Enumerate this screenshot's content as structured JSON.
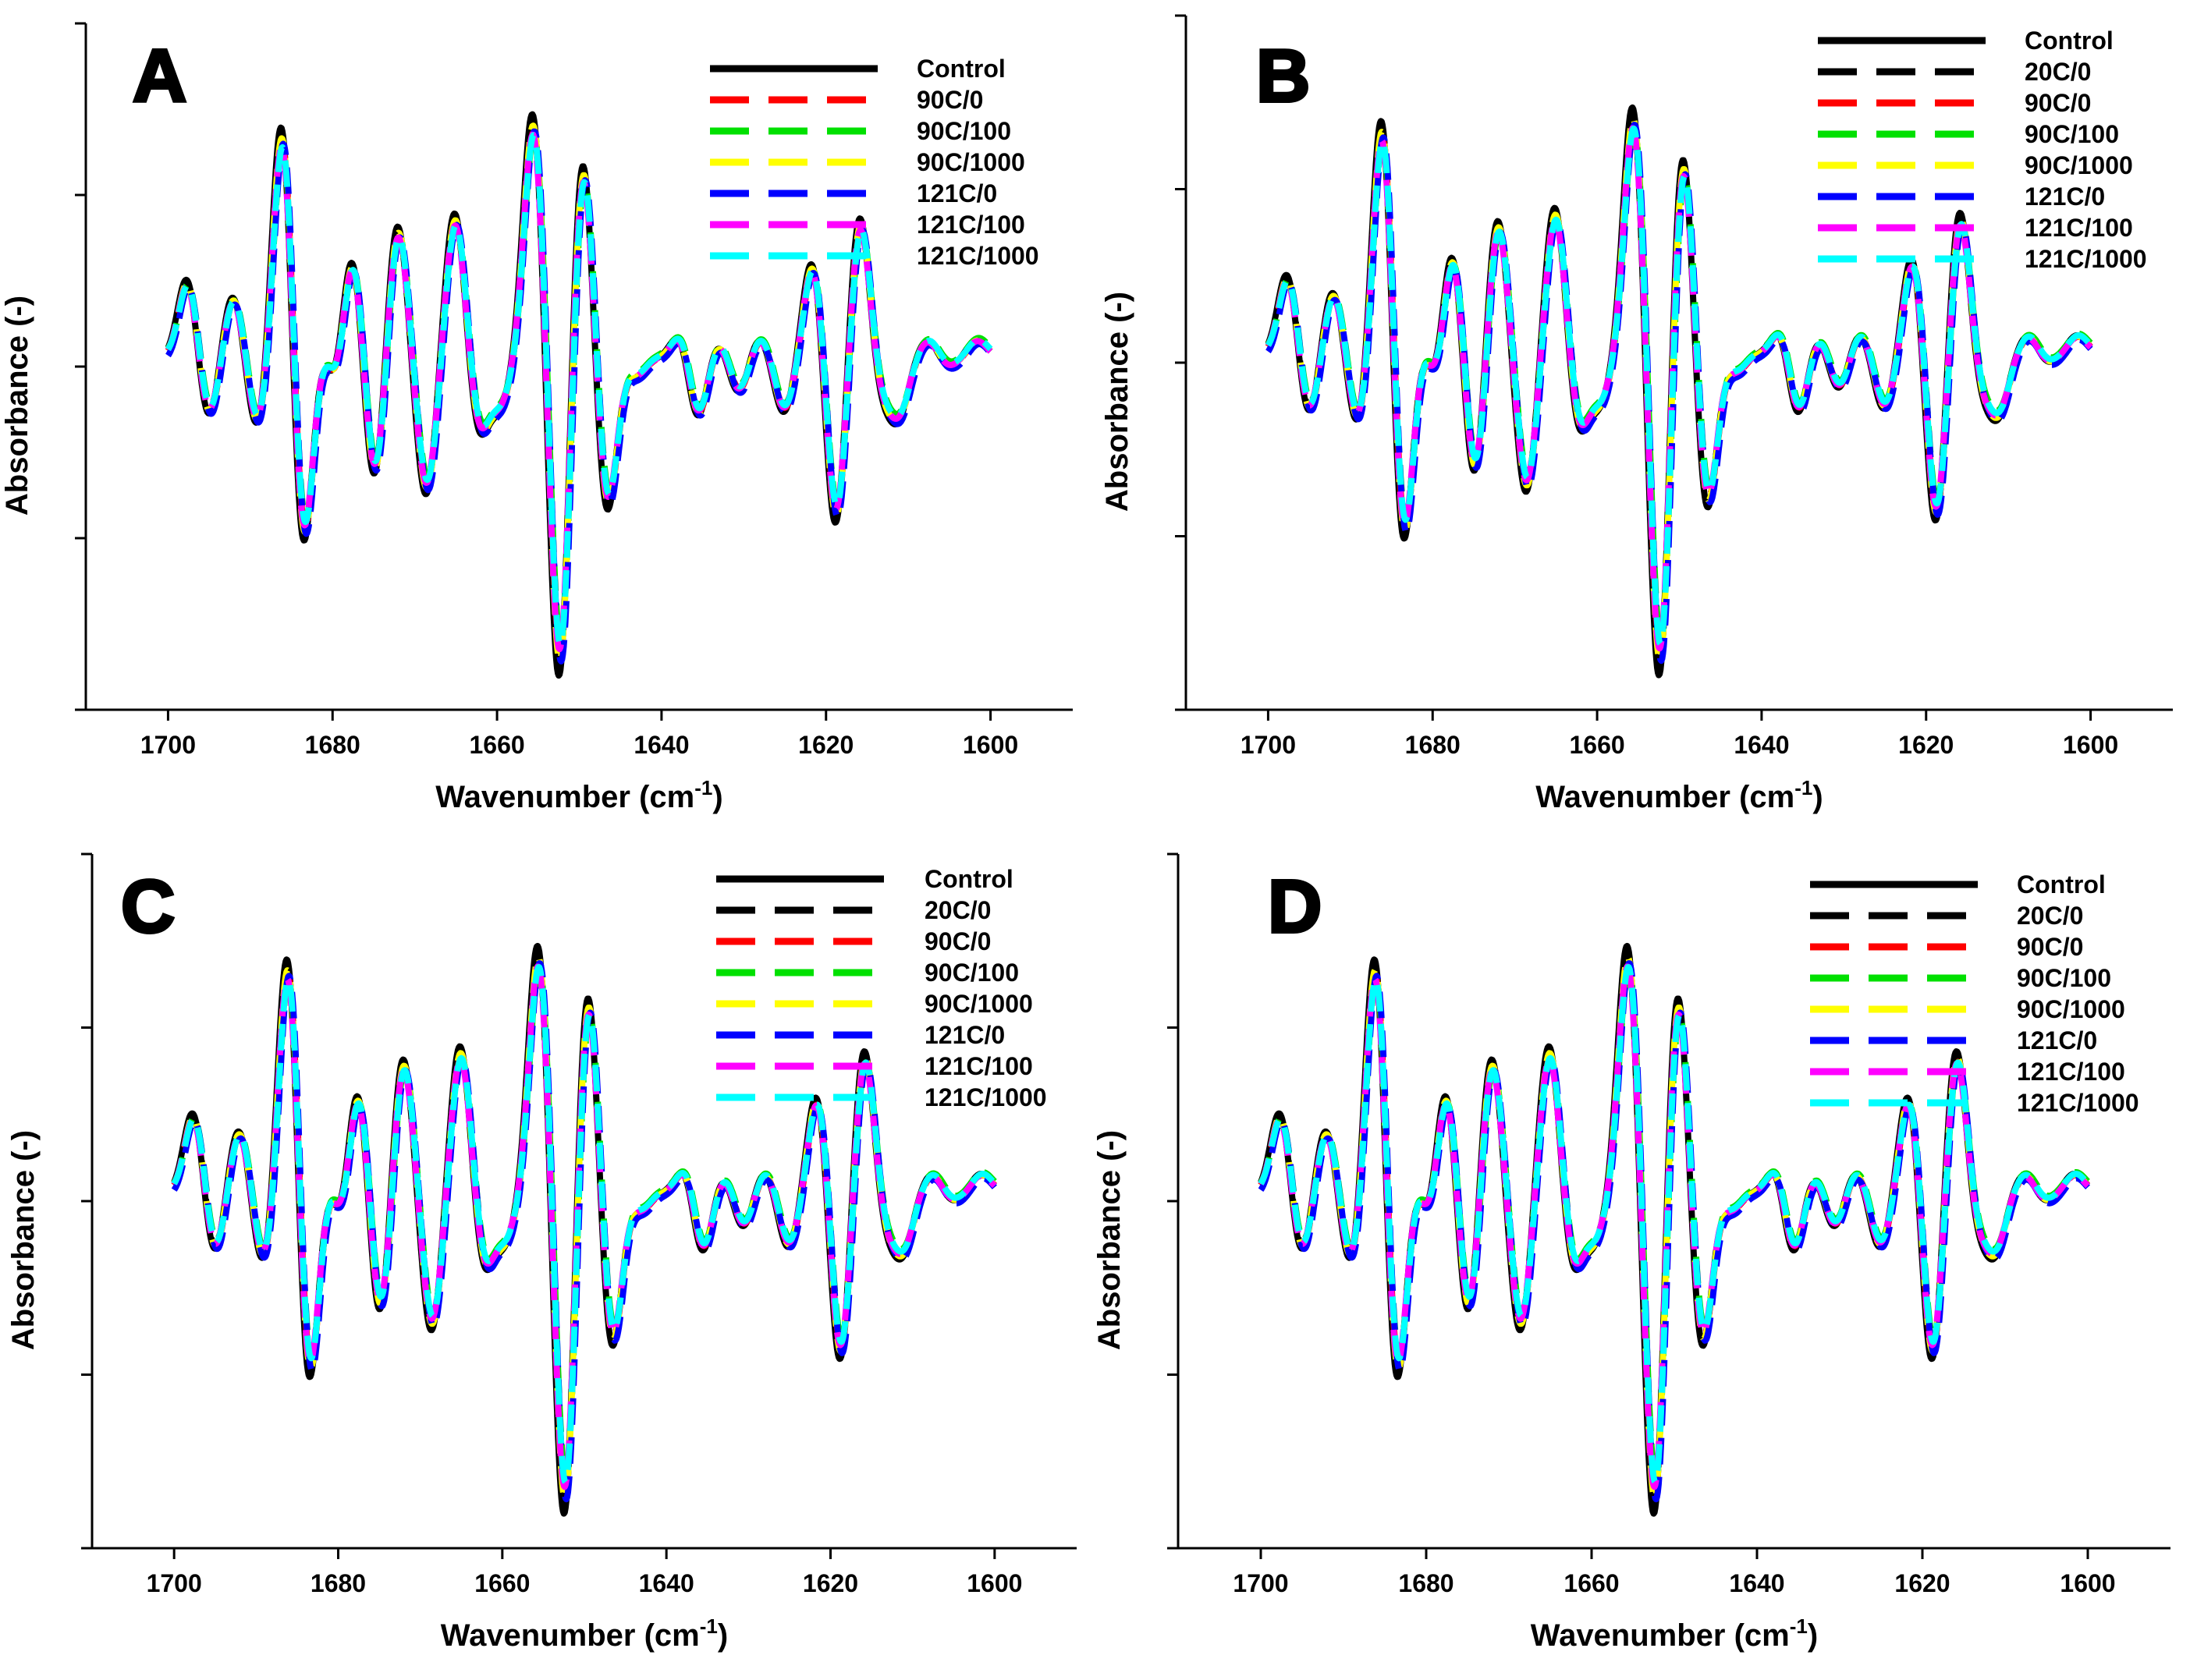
{
  "figure": {
    "series_colors": {
      "Control": "#000000",
      "20C/0": "#000000",
      "90C/0": "#ff0000",
      "90C/100": "#00e000",
      "90C/1000": "#ffff00",
      "121C/0": "#0000ff",
      "121C/100": "#ff00ff",
      "121C/1000": "#00ffff"
    }
  },
  "chart_data": [
    {
      "panel_label": "A",
      "type": "line",
      "xlabel": "Wavenumber (cm",
      "xlabel_sup": "-1",
      "xlabel_close": ")",
      "ylabel": "Absorbance (-)",
      "xlim": [
        1710,
        1590
      ],
      "ylim": [
        -2,
        2
      ],
      "x_ticks": [
        1700,
        1680,
        1660,
        1640,
        1620,
        1600
      ],
      "y_tick_labels_shown": false,
      "legend_position": "top-right",
      "series": [
        "Control",
        "90C/0",
        "90C/100",
        "90C/1000",
        "121C/0",
        "121C/100",
        "121C/1000"
      ]
    },
    {
      "panel_label": "B",
      "type": "line",
      "xlabel": "Wavenumber (cm",
      "xlabel_sup": "-1",
      "xlabel_close": ")",
      "ylabel": "Absorbance (-)",
      "xlim": [
        1710,
        1590
      ],
      "ylim": [
        -2,
        2
      ],
      "x_ticks": [
        1700,
        1680,
        1660,
        1640,
        1620,
        1600
      ],
      "y_tick_labels_shown": false,
      "legend_position": "top-right",
      "series": [
        "Control",
        "20C/0",
        "90C/0",
        "90C/100",
        "90C/1000",
        "121C/0",
        "121C/100",
        "121C/1000"
      ]
    },
    {
      "panel_label": "C",
      "type": "line",
      "xlabel": "Wavenumber (cm",
      "xlabel_sup": "-1",
      "xlabel_close": ")",
      "ylabel": "Absorbance (-)",
      "xlim": [
        1710,
        1590
      ],
      "ylim": [
        -2,
        2
      ],
      "x_ticks": [
        1700,
        1680,
        1660,
        1640,
        1620,
        1600
      ],
      "y_tick_labels_shown": false,
      "legend_position": "top-right",
      "series": [
        "Control",
        "20C/0",
        "90C/0",
        "90C/100",
        "90C/1000",
        "121C/0",
        "121C/100",
        "121C/1000"
      ]
    },
    {
      "panel_label": "D",
      "type": "line",
      "xlabel": "Wavenumber (cm",
      "xlabel_sup": "-1",
      "xlabel_close": ")",
      "ylabel": "Absorbance (-)",
      "xlim": [
        1710,
        1590
      ],
      "ylim": [
        -2,
        2
      ],
      "x_ticks": [
        1700,
        1680,
        1660,
        1640,
        1620,
        1600
      ],
      "y_tick_labels_shown": false,
      "legend_position": "top-right",
      "series": [
        "Control",
        "20C/0",
        "90C/0",
        "90C/100",
        "90C/1000",
        "121C/0",
        "121C/100",
        "121C/1000"
      ]
    }
  ],
  "spectrum_shape": {
    "baseline": 0.05,
    "peaks": [
      {
        "x": 1697.5,
        "a": 0.45
      },
      {
        "x": 1695,
        "a": -0.35
      },
      {
        "x": 1692,
        "a": 0.35
      },
      {
        "x": 1689,
        "a": -0.4
      },
      {
        "x": 1686,
        "a": 1.35
      },
      {
        "x": 1683.5,
        "a": -1.1
      },
      {
        "x": 1681,
        "a": 0.1
      },
      {
        "x": 1679.5,
        "a": -0.2
      },
      {
        "x": 1677.5,
        "a": 0.6
      },
      {
        "x": 1674.8,
        "a": -0.7
      },
      {
        "x": 1672,
        "a": 0.75
      },
      {
        "x": 1668.5,
        "a": -0.75
      },
      {
        "x": 1665,
        "a": 0.8
      },
      {
        "x": 1662,
        "a": -0.4
      },
      {
        "x": 1659.5,
        "a": -0.25
      },
      {
        "x": 1655.5,
        "a": 1.35
      },
      {
        "x": 1652.3,
        "a": -1.8
      },
      {
        "x": 1649.5,
        "a": 1.15
      },
      {
        "x": 1646.5,
        "a": -0.85
      },
      {
        "x": 1643,
        "a": -0.1
      },
      {
        "x": 1640,
        "a": 0.0
      },
      {
        "x": 1637.5,
        "a": 0.15
      },
      {
        "x": 1635.5,
        "a": -0.35
      },
      {
        "x": 1633,
        "a": 0.1
      },
      {
        "x": 1630.5,
        "a": -0.2
      },
      {
        "x": 1628,
        "a": 0.12
      },
      {
        "x": 1625,
        "a": -0.3
      },
      {
        "x": 1621.5,
        "a": 0.55
      },
      {
        "x": 1618.7,
        "a": -0.95
      },
      {
        "x": 1615.8,
        "a": 0.8
      },
      {
        "x": 1613,
        "a": -0.2
      },
      {
        "x": 1611,
        "a": -0.3
      },
      {
        "x": 1607.5,
        "a": 0.1
      },
      {
        "x": 1605,
        "a": -0.05
      },
      {
        "x": 1601.5,
        "a": 0.1
      }
    ],
    "peak_width": 1.15
  }
}
